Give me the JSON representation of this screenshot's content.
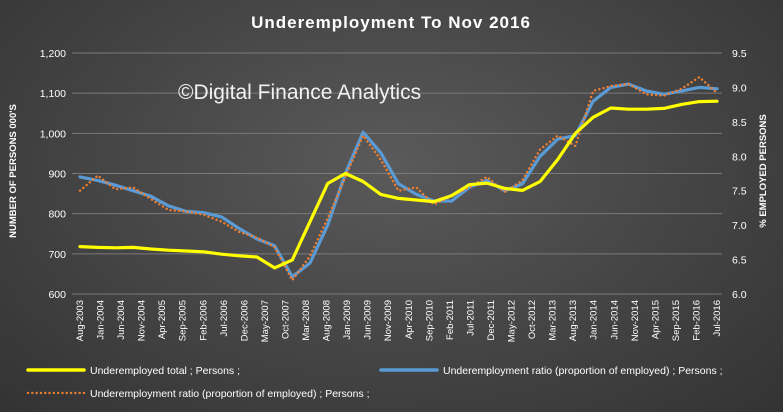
{
  "watermark": "©Digital Finance Analytics",
  "chart_data": {
    "type": "line",
    "title": "Underemployment  To Nov 2016",
    "ylabel_left": "NUMBER OF PERSONS 000'S",
    "ylabel_right": "% EMPLOYED PERSONS",
    "ylim_left": [
      600,
      1200
    ],
    "ylim_right": [
      6.0,
      9.5
    ],
    "yticks_left": [
      "600",
      "700",
      "800",
      "900",
      "1,000",
      "1,100",
      "1,200"
    ],
    "yticks_right": [
      "6.0",
      "6.5",
      "7.0",
      "7.5",
      "8.0",
      "8.5",
      "9.0",
      "9.5"
    ],
    "x_tick_labels": [
      "Aug-2003",
      "Jan-2004",
      "Jun-2004",
      "Nov-2004",
      "Apr-2005",
      "Sep-2005",
      "Feb-2006",
      "Jul-2006",
      "Dec-2006",
      "May-2007",
      "Oct-2007",
      "Mar-2008",
      "Aug-2008",
      "Jan-2009",
      "Jun-2009",
      "Nov-2009",
      "Apr-2010",
      "Sep-2010",
      "Feb-2011",
      "Jul-2011",
      "Dec-2011",
      "May-2012",
      "Oct-2012",
      "Mar-2013",
      "Aug-2013",
      "Jan-2014",
      "Jun-2014",
      "Nov-2014",
      "Apr-2015",
      "Sep-2015",
      "Feb-2016",
      "Jul-2016"
    ],
    "grid": true,
    "legend_position": "bottom",
    "colors": {
      "total": "#ffff00",
      "ratio_trend": "#5b9bd5",
      "ratio_original": "#ed7d31",
      "grid": "#7a7a7a"
    },
    "series": [
      {
        "name": "Underemployed total ;  Persons ;",
        "axis": "left",
        "style": "solid",
        "values": [
          718,
          716,
          715,
          716,
          712,
          709,
          707,
          705,
          699,
          695,
          692,
          665,
          685,
          780,
          875,
          900,
          880,
          848,
          838,
          834,
          830,
          845,
          872,
          876,
          863,
          858,
          880,
          935,
          1000,
          1040,
          1063,
          1060,
          1060,
          1062,
          1072,
          1079,
          1080
        ]
      },
      {
        "name": "Underemployment ratio (proportion of employed) ;  Persons ;",
        "axis": "right",
        "style": "solid",
        "values": [
          7.7,
          7.65,
          7.58,
          7.5,
          7.42,
          7.28,
          7.2,
          7.18,
          7.12,
          6.95,
          6.8,
          6.7,
          6.25,
          6.45,
          7.0,
          7.75,
          8.35,
          8.05,
          7.6,
          7.45,
          7.35,
          7.35,
          7.55,
          7.65,
          7.5,
          7.6,
          8.0,
          8.25,
          8.3,
          8.8,
          9.0,
          9.05,
          8.95,
          8.9,
          8.95,
          9.0,
          8.98
        ]
      },
      {
        "name": "Underemployment ratio (proportion of employed) ;  Persons ;",
        "axis": "right",
        "style": "dotted",
        "values": [
          7.5,
          7.72,
          7.52,
          7.55,
          7.38,
          7.22,
          7.2,
          7.15,
          7.05,
          6.9,
          6.82,
          6.68,
          6.2,
          6.55,
          7.1,
          7.7,
          8.3,
          7.95,
          7.5,
          7.55,
          7.3,
          7.42,
          7.55,
          7.7,
          7.48,
          7.65,
          8.1,
          8.3,
          8.15,
          8.95,
          9.02,
          9.05,
          8.9,
          8.88,
          8.98,
          9.15,
          8.92
        ]
      }
    ]
  }
}
